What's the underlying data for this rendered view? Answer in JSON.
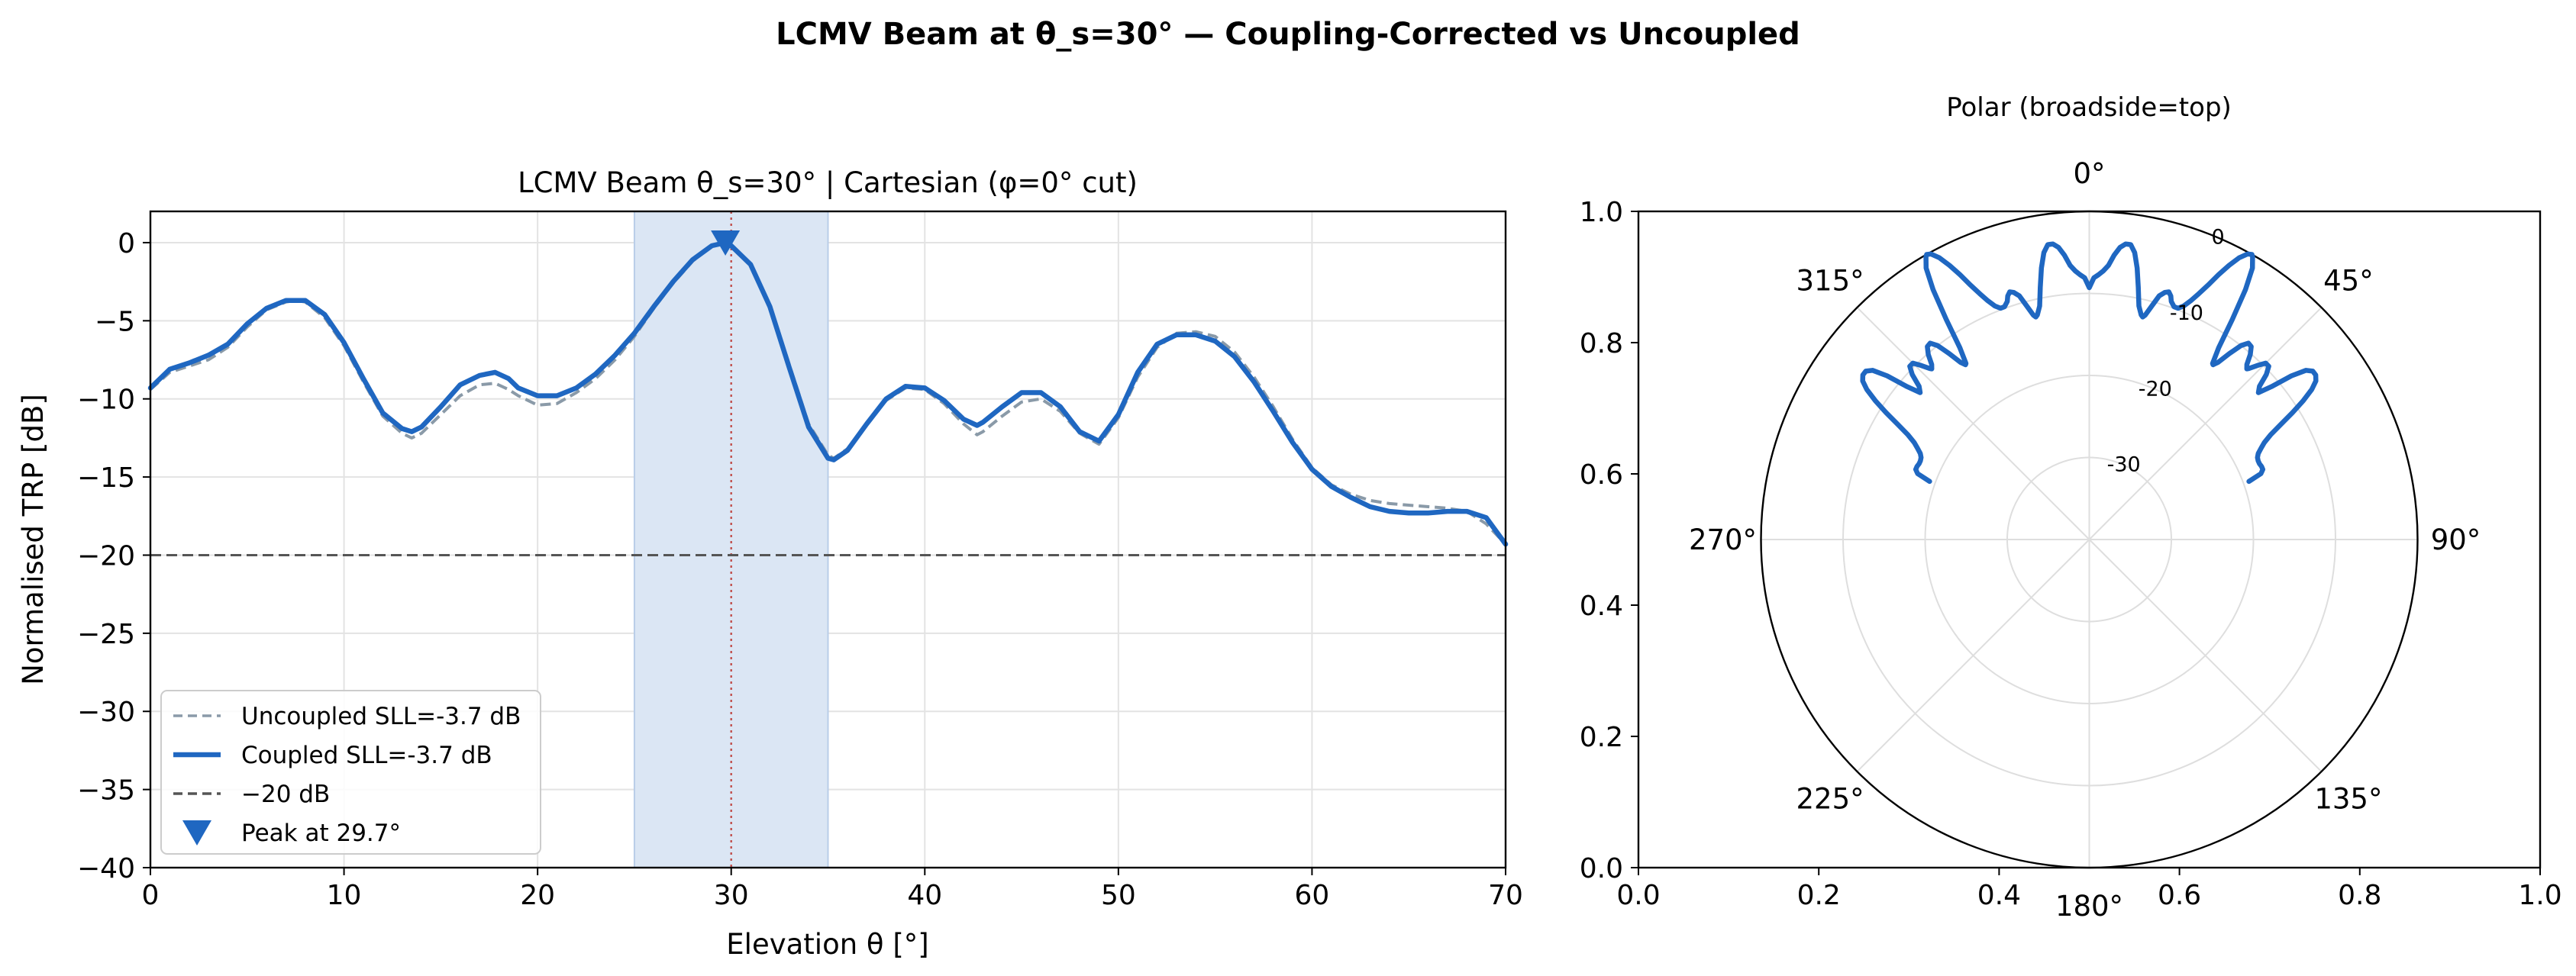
{
  "figure": {
    "suptitle": "LCMV Beam at θ_s=30° — Coupling-Corrected vs Uncoupled"
  },
  "colors": {
    "coupled": "#1f67c1",
    "uncoupled": "#8a9aa8",
    "reference": "#555555",
    "peak_line": "#c0504d",
    "mainlobe_fill": "#dbe6f4",
    "grid": "#e3e3e3"
  },
  "chart_data": [
    {
      "type": "line",
      "title": "LCMV Beam θ_s=30°  |  Cartesian (φ=0° cut)",
      "xlabel": "Elevation θ [°]",
      "ylabel": "Normalised TRP [dB]",
      "xlim": [
        0,
        70
      ],
      "ylim": [
        -40,
        2
      ],
      "xticks": [
        0,
        10,
        20,
        30,
        40,
        50,
        60,
        70
      ],
      "yticks": [
        0,
        -5,
        -10,
        -15,
        -20,
        -25,
        -30,
        -35,
        -40
      ],
      "grid": true,
      "legend": {
        "position": "lower-left",
        "entries": [
          {
            "label": "Uncoupled SLL=-3.7 dB",
            "style": "dashed",
            "color": "#8a9aa8"
          },
          {
            "label": "Coupled SLL=-3.7 dB",
            "style": "solid",
            "color": "#1f67c1"
          },
          {
            "label": "−20 dB",
            "style": "dashed",
            "color": "#555555"
          },
          {
            "label": "Peak at 29.7°",
            "style": "marker-triangle-down",
            "color": "#1f67c1"
          }
        ]
      },
      "mainlobe_span": [
        25,
        35
      ],
      "steer_line_x": 30,
      "reference_y": -20,
      "peak": {
        "x": 29.7,
        "y": 0
      },
      "series": [
        {
          "name": "Uncoupled SLL=-3.7 dB",
          "x": [
            0,
            1,
            2,
            3,
            4,
            5,
            6,
            7,
            7.5,
            8,
            9,
            10,
            11,
            12,
            13,
            13.5,
            14,
            15,
            16,
            17,
            17.8,
            18.5,
            19,
            20,
            21,
            22,
            23,
            24,
            25,
            26,
            27,
            28,
            29,
            29.7,
            30,
            31,
            32,
            33,
            34,
            35,
            35.3,
            36,
            37,
            38,
            39,
            40,
            41,
            42,
            42.7,
            43,
            44,
            45,
            46,
            47,
            48,
            49,
            50,
            51,
            52,
            53,
            54,
            55,
            56,
            57,
            58,
            59,
            60,
            61,
            62,
            63,
            64,
            65,
            66,
            67,
            68,
            69,
            70
          ],
          "y": [
            -9.4,
            -8.3,
            -7.9,
            -7.5,
            -6.7,
            -5.4,
            -4.3,
            -3.8,
            -3.7,
            -3.8,
            -4.8,
            -6.6,
            -8.9,
            -11.1,
            -12.2,
            -12.5,
            -12.2,
            -11,
            -9.8,
            -9.1,
            -9.0,
            -9.4,
            -9.8,
            -10.4,
            -10.3,
            -9.6,
            -8.7,
            -7.5,
            -6.0,
            -4.2,
            -2.6,
            -1.2,
            -0.2,
            0,
            -0.2,
            -1.4,
            -4.0,
            -7.8,
            -11.6,
            -13.6,
            -13.8,
            -13.2,
            -11.6,
            -10.1,
            -9.3,
            -9.4,
            -10.3,
            -11.6,
            -12.3,
            -12.1,
            -11.1,
            -10.2,
            -10.0,
            -10.8,
            -12.2,
            -12.9,
            -11.2,
            -8.6,
            -6.7,
            -5.8,
            -5.7,
            -6.0,
            -7.0,
            -8.6,
            -10.5,
            -12.6,
            -14.4,
            -15.5,
            -16.1,
            -16.5,
            -16.7,
            -16.8,
            -16.9,
            -17.0,
            -17.2,
            -18.0,
            -19.3
          ]
        },
        {
          "name": "Coupled SLL=-3.7 dB",
          "x": [
            0,
            1,
            2,
            3,
            4,
            5,
            6,
            7,
            7.5,
            8,
            9,
            10,
            11,
            12,
            13,
            13.5,
            14,
            15,
            16,
            17,
            17.8,
            18.5,
            19,
            20,
            21,
            22,
            23,
            24,
            25,
            26,
            27,
            28,
            29,
            29.7,
            30,
            31,
            32,
            33,
            34,
            35,
            35.3,
            36,
            37,
            38,
            39,
            40,
            41,
            42,
            42.7,
            43,
            44,
            45,
            46,
            47,
            48,
            49,
            50,
            51,
            52,
            53,
            54,
            55,
            56,
            57,
            58,
            59,
            60,
            61,
            62,
            63,
            64,
            65,
            66,
            67,
            68,
            69,
            70
          ],
          "y": [
            -9.3,
            -8.1,
            -7.7,
            -7.2,
            -6.5,
            -5.2,
            -4.2,
            -3.7,
            -3.7,
            -3.7,
            -4.6,
            -6.4,
            -8.7,
            -10.9,
            -11.9,
            -12.1,
            -11.8,
            -10.5,
            -9.1,
            -8.5,
            -8.3,
            -8.7,
            -9.3,
            -9.8,
            -9.8,
            -9.3,
            -8.4,
            -7.2,
            -5.8,
            -4.1,
            -2.5,
            -1.1,
            -0.2,
            0,
            -0.2,
            -1.4,
            -4.1,
            -8.0,
            -11.8,
            -13.8,
            -13.9,
            -13.3,
            -11.6,
            -10.0,
            -9.2,
            -9.3,
            -10.1,
            -11.3,
            -11.7,
            -11.5,
            -10.5,
            -9.6,
            -9.6,
            -10.5,
            -12.1,
            -12.7,
            -11.0,
            -8.3,
            -6.5,
            -5.9,
            -5.9,
            -6.3,
            -7.3,
            -8.9,
            -10.8,
            -12.8,
            -14.5,
            -15.6,
            -16.3,
            -16.9,
            -17.2,
            -17.3,
            -17.3,
            -17.2,
            -17.2,
            -17.6,
            -19.3
          ]
        },
        {
          "name": "−20 dB",
          "x": [
            0,
            70
          ],
          "y": [
            -20,
            -20
          ]
        }
      ]
    },
    {
      "type": "polar",
      "title": "Polar (broadside=top)",
      "theta_zero": "top",
      "theta_direction": "clockwise",
      "angle_ticks": [
        "0°",
        "45°",
        "90°",
        "135°",
        "180°",
        "225°",
        "270°",
        "315°"
      ],
      "radial_ticks": [
        "0",
        "-10",
        "-20",
        "-30"
      ],
      "radial_range_db": [
        -40,
        0
      ],
      "outer_axes_ticks": {
        "x": [
          "0.0",
          "0.2",
          "0.4",
          "0.6",
          "0.8",
          "1.0"
        ],
        "y": [
          "0.0",
          "0.2",
          "0.4",
          "0.6",
          "0.8",
          "1.0"
        ]
      },
      "series": [
        {
          "name": "Coupled",
          "mirrored": true,
          "theta_deg": [
            0,
            1,
            2,
            3,
            4,
            5,
            6,
            7,
            7.5,
            8,
            9,
            10,
            11,
            12,
            13,
            13.5,
            14,
            15,
            16,
            17,
            17.8,
            18.5,
            19,
            20,
            21,
            22,
            23,
            24,
            25,
            26,
            27,
            28,
            29,
            29.7,
            30,
            31,
            32,
            33,
            34,
            35,
            35.3,
            36,
            37,
            38,
            39,
            40,
            41,
            42,
            42.7,
            43,
            44,
            45,
            46,
            47,
            48,
            49,
            50,
            51,
            52,
            53,
            54,
            55,
            56,
            57,
            58,
            59,
            60,
            61,
            62,
            63,
            64,
            65,
            66,
            67,
            68,
            69,
            70
          ],
          "r_db": [
            -9.3,
            -8.1,
            -7.7,
            -7.2,
            -6.5,
            -5.2,
            -4.2,
            -3.7,
            -3.7,
            -3.7,
            -4.6,
            -6.4,
            -8.7,
            -10.9,
            -11.9,
            -12.1,
            -11.8,
            -10.5,
            -9.1,
            -8.5,
            -8.3,
            -8.7,
            -9.3,
            -9.8,
            -9.8,
            -9.3,
            -8.4,
            -7.2,
            -5.8,
            -4.1,
            -2.5,
            -1.1,
            -0.2,
            0,
            -0.2,
            -1.4,
            -4.1,
            -8.0,
            -11.8,
            -13.8,
            -13.9,
            -13.3,
            -11.6,
            -10.0,
            -9.2,
            -9.3,
            -10.1,
            -11.3,
            -11.7,
            -11.5,
            -10.5,
            -9.6,
            -9.6,
            -10.5,
            -12.1,
            -12.7,
            -11.0,
            -8.3,
            -6.5,
            -5.9,
            -5.9,
            -6.3,
            -7.3,
            -8.9,
            -10.8,
            -12.8,
            -14.5,
            -15.6,
            -16.3,
            -16.9,
            -17.2,
            -17.3,
            -17.3,
            -17.2,
            -17.2,
            -17.6,
            -19.3
          ]
        }
      ]
    }
  ]
}
